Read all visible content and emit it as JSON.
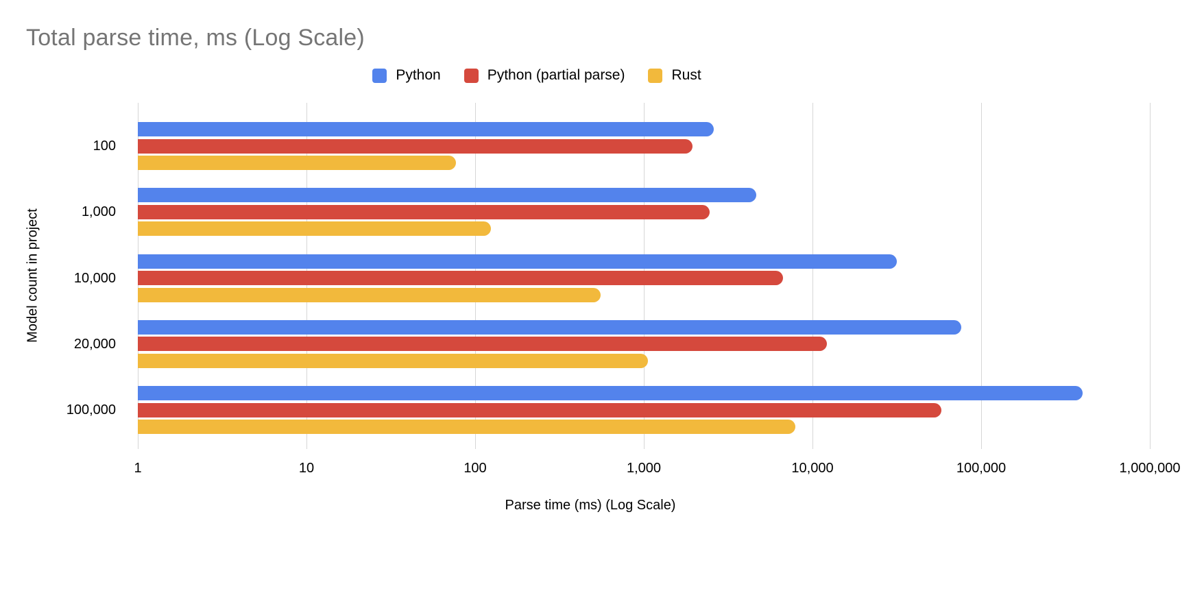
{
  "chart_data": {
    "type": "bar",
    "orientation": "horizontal",
    "title": "Total parse time, ms (Log Scale)",
    "xlabel": "Parse time (ms) (Log Scale)",
    "ylabel": "Model count in project",
    "x_scale": "log",
    "x_min": 1,
    "x_max": 1000000,
    "x_ticks": [
      "1",
      "10",
      "100",
      "1,000",
      "10,000",
      "100,000",
      "1,000,000"
    ],
    "x_tick_values": [
      1,
      10,
      100,
      1000,
      10000,
      100000,
      1000000
    ],
    "categories": [
      "100",
      "1,000",
      "10,000",
      "20,000",
      "100,000"
    ],
    "series": [
      {
        "name": "Python",
        "color": "#5383EC",
        "values": [
          2600,
          4650,
          31500,
          76000,
          400000
        ]
      },
      {
        "name": "Python (partial parse)",
        "color": "#D5493D",
        "values": [
          1950,
          2450,
          6700,
          12200,
          58000
        ]
      },
      {
        "name": "Rust",
        "color": "#F2B93C",
        "values": [
          77,
          124,
          556,
          1060,
          7900
        ]
      }
    ],
    "legend_position": "top",
    "grid": true,
    "title_color": "#757575",
    "gridline_color": "#d6d6d6"
  }
}
